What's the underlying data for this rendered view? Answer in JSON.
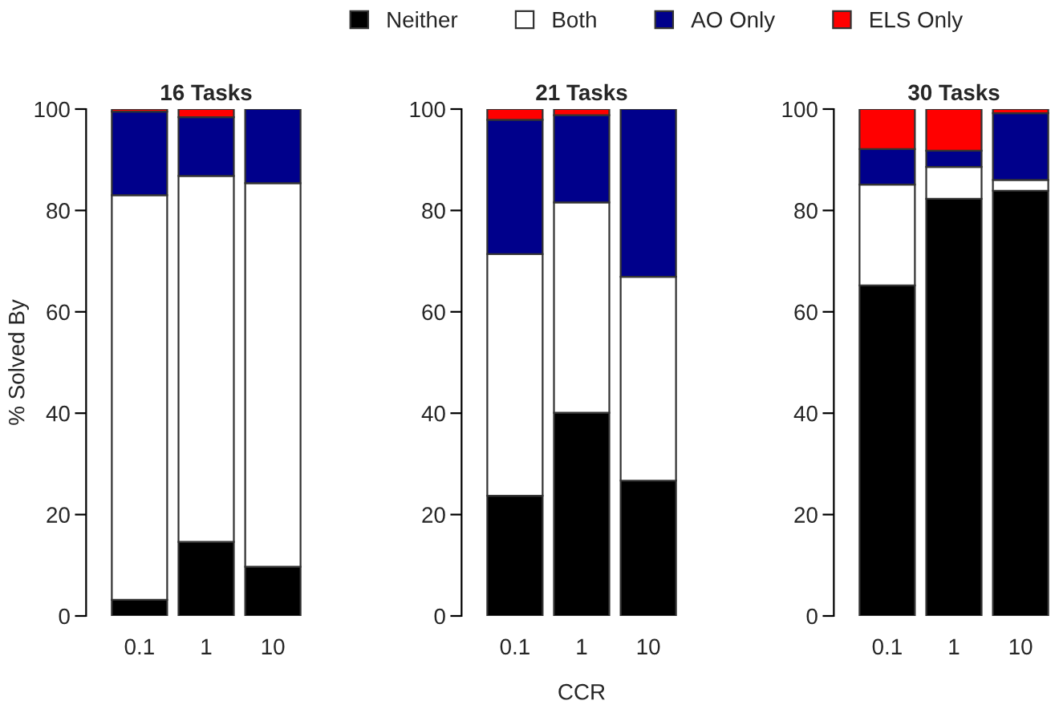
{
  "chart_data": [
    {
      "type": "bar",
      "title": "16 Tasks",
      "ylabel": "% Solved By",
      "categories": [
        "0.1",
        "1",
        "10"
      ],
      "stacked": true,
      "ylim": [
        0,
        100
      ],
      "yticks": [
        0,
        20,
        40,
        60,
        80,
        100
      ],
      "grid": false,
      "legend": "top",
      "series": [
        {
          "name": "Neither",
          "color": "#000000",
          "values": [
            3.2,
            14.6,
            9.7
          ]
        },
        {
          "name": "Both",
          "color": "#ffffff",
          "values": [
            79.8,
            72.2,
            75.7
          ]
        },
        {
          "name": "AO Only",
          "color": "#00008b",
          "values": [
            16.5,
            11.6,
            14.6
          ]
        },
        {
          "name": "ELS Only",
          "color": "#ff0000",
          "values": [
            0.5,
            1.6,
            null
          ]
        }
      ]
    },
    {
      "type": "bar",
      "title": "21 Tasks",
      "xlabel": "CCR",
      "categories": [
        "0.1",
        "1",
        "10"
      ],
      "stacked": true,
      "ylim": [
        0,
        100
      ],
      "yticks": [
        0,
        20,
        40,
        60,
        80,
        100
      ],
      "grid": false,
      "series": [
        {
          "color": "#000000",
          "values": [
            23.7,
            40.1,
            26.7
          ]
        },
        {
          "color": "#ffffff",
          "values": [
            47.7,
            41.5,
            40.2
          ]
        },
        {
          "color": "#00008b",
          "values": [
            26.5,
            17.2,
            33.1
          ]
        },
        {
          "color": "#ff0000",
          "values": [
            2.1,
            1.2,
            null
          ]
        }
      ]
    },
    {
      "type": "bar",
      "title": "30 Tasks",
      "categories": [
        "0.1",
        "1",
        "10"
      ],
      "stacked": true,
      "ylim": [
        0,
        100
      ],
      "yticks": [
        0,
        20,
        40,
        60,
        80,
        100
      ],
      "grid": false,
      "series": [
        {
          "color": "#000000",
          "values": [
            65.2,
            82.3,
            83.9
          ]
        },
        {
          "color": "#ffffff",
          "values": [
            19.9,
            6.3,
            2.1
          ]
        },
        {
          "color": "#00008b",
          "values": [
            7.0,
            3.2,
            13.2
          ]
        },
        {
          "color": "#ff0000",
          "values": [
            7.9,
            8.2,
            0.8
          ]
        }
      ]
    }
  ]
}
